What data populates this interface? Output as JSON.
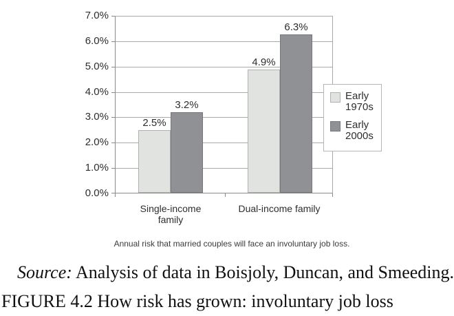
{
  "chart_data": {
    "type": "bar",
    "title": "",
    "xlabel": "",
    "ylabel": "",
    "categories": [
      "Single-income family",
      "Dual-income family"
    ],
    "series": [
      {
        "name": "Early 1970s",
        "values": [
          2.5,
          4.9
        ],
        "labels": [
          "2.5%",
          "4.9%"
        ],
        "color": "#e1e3e0",
        "border_color": "#afb2ae"
      },
      {
        "name": "Early 2000s",
        "values": [
          3.2,
          6.3
        ],
        "labels": [
          "3.2%",
          "6.3%"
        ],
        "color": "#8f9195",
        "border_color": "#75777b"
      }
    ],
    "ylim": [
      0,
      7
    ],
    "ytick_step": 1,
    "yticks": [
      "7.0%",
      "6.0%",
      "5.0%",
      "4.0%",
      "3.0%",
      "2.0%",
      "1.0%",
      "0.0%"
    ],
    "grid": true,
    "legend_position": "right",
    "caption": "Annual risk that married couples will face an involuntary job loss."
  },
  "colors": {
    "axis": "#8a8a8a",
    "gridline": "#a8a8a8",
    "text": "#2d2d2d",
    "legend_border": "#b5b5b5"
  },
  "footer": {
    "source_label": "Source:",
    "source_text": "Analysis of data in Boisjoly, Duncan, and Smeeding.",
    "figure_caption": "FIGURE 4.2 How risk has grown: involuntary job loss"
  }
}
